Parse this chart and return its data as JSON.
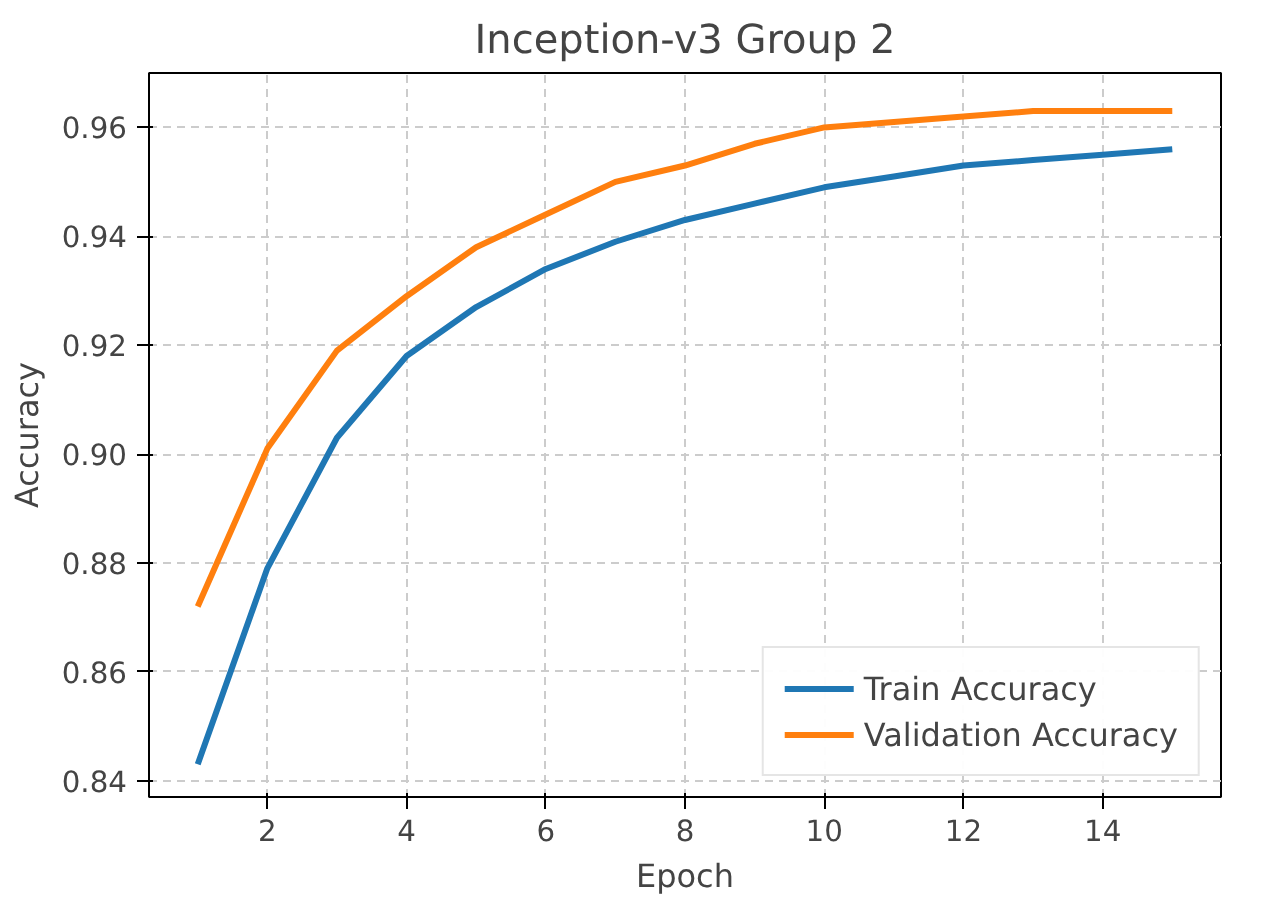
{
  "chart_data": {
    "type": "line",
    "title": "Inception-v3 Group 2",
    "xlabel": "Epoch",
    "ylabel": "Accuracy",
    "x": [
      1,
      2,
      3,
      4,
      5,
      6,
      7,
      8,
      9,
      10,
      11,
      12,
      13,
      14,
      15
    ],
    "series": [
      {
        "name": "Train Accuracy",
        "color": "#1f77b4",
        "values": [
          0.843,
          0.879,
          0.903,
          0.918,
          0.927,
          0.934,
          0.939,
          0.943,
          0.946,
          0.949,
          0.951,
          0.953,
          0.954,
          0.955,
          0.956
        ]
      },
      {
        "name": "Validation Accuracy",
        "color": "#ff7f0e",
        "values": [
          0.872,
          0.901,
          0.919,
          0.929,
          0.938,
          0.944,
          0.95,
          0.953,
          0.957,
          0.96,
          0.961,
          0.962,
          0.963,
          0.963,
          0.963
        ]
      }
    ],
    "xlim": [
      0.3,
      15.7
    ],
    "ylim": [
      0.837,
      0.97
    ],
    "xticks": [
      2,
      4,
      6,
      8,
      10,
      12,
      14
    ],
    "yticks": [
      {
        "value": 0.84,
        "label": "0.84"
      },
      {
        "value": 0.86,
        "label": "0.86"
      },
      {
        "value": 0.88,
        "label": "0.88"
      },
      {
        "value": 0.9,
        "label": "0.90"
      },
      {
        "value": 0.92,
        "label": "0.92"
      },
      {
        "value": 0.94,
        "label": "0.94"
      },
      {
        "value": 0.96,
        "label": "0.96"
      }
    ],
    "grid": true,
    "legend": "bottom right"
  }
}
